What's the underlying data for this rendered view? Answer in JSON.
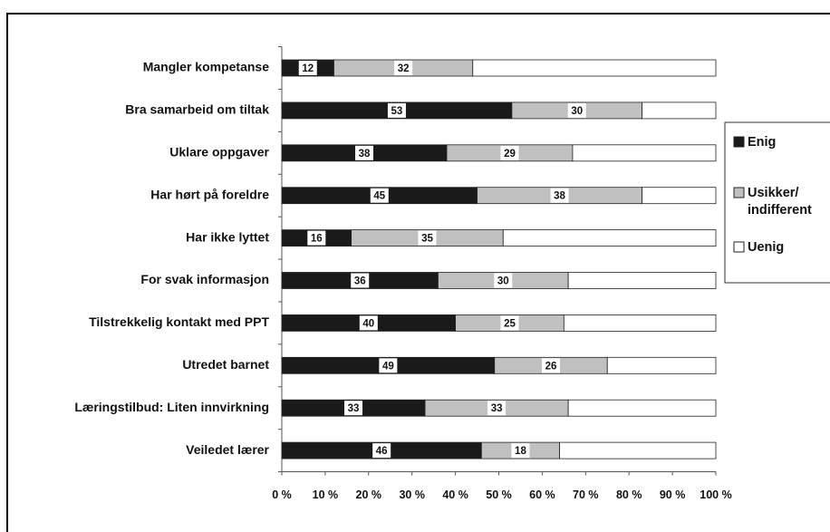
{
  "chart_data": {
    "type": "stacked_barh",
    "categories": [
      "Mangler kompetanse",
      "Bra samarbeid om tiltak",
      "Uklare oppgaver",
      "Har hørt på foreldre",
      "Har ikke lyttet",
      "For svak informasjon",
      "Tilstrekkelig kontakt med PPT",
      "Utredet barnet",
      "Læringstilbud: Liten innvirkning",
      "Veiledet lærer"
    ],
    "series": [
      {
        "name": "Enig",
        "color": "#1a1a1a",
        "data_labels": true,
        "values": [
          12,
          53,
          38,
          45,
          16,
          36,
          40,
          49,
          33,
          46
        ]
      },
      {
        "name": "Usikker/ indifferent",
        "color": "#c0c0c0",
        "data_labels": true,
        "values": [
          32,
          30,
          29,
          38,
          35,
          30,
          25,
          26,
          33,
          18
        ]
      },
      {
        "name": "Uenig",
        "color": "#ffffff",
        "data_labels": false,
        "values": [
          56,
          17,
          33,
          17,
          49,
          34,
          35,
          25,
          34,
          36
        ]
      }
    ],
    "xlim": [
      0,
      100
    ],
    "xticks": [
      {
        "value": 0,
        "label": "0 %"
      },
      {
        "value": 10,
        "label": "10 %"
      },
      {
        "value": 20,
        "label": "20 %"
      },
      {
        "value": 30,
        "label": "30 %"
      },
      {
        "value": 40,
        "label": "40 %"
      },
      {
        "value": 50,
        "label": "50 %"
      },
      {
        "value": 60,
        "label": "60 %"
      },
      {
        "value": 70,
        "label": "70 %"
      },
      {
        "value": 80,
        "label": "80 %"
      },
      {
        "value": 90,
        "label": "90 %"
      },
      {
        "value": 100,
        "label": "100 %"
      }
    ],
    "legend": "right"
  }
}
